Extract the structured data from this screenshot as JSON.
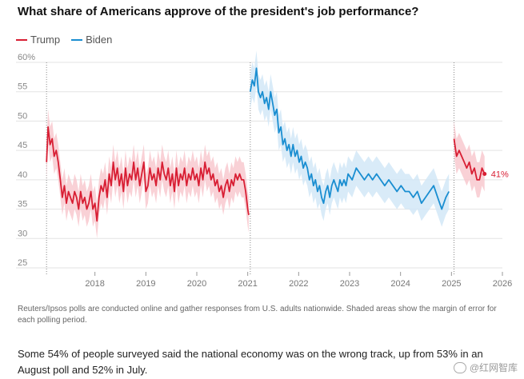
{
  "title": "What share of Americans approve of the president's job performance?",
  "legend": [
    {
      "label": "Trump",
      "color": "#d81e33"
    },
    {
      "label": "Biden",
      "color": "#1a8ed1"
    }
  ],
  "chart_data": {
    "type": "line",
    "title": "What share of Americans approve of the president's job performance?",
    "ylabel": "",
    "xlabel": "",
    "ylim": [
      25,
      60
    ],
    "xlim": [
      2017.0,
      2026.0
    ],
    "y_ticks": [
      "60%",
      "55",
      "50",
      "45",
      "40",
      "35",
      "30",
      "25"
    ],
    "y_tick_values": [
      60,
      55,
      50,
      45,
      40,
      35,
      30,
      25
    ],
    "x_ticks": [
      "2018",
      "2019",
      "2020",
      "2021",
      "2022",
      "2023",
      "2024",
      "2025",
      "2026"
    ],
    "x_tick_values": [
      2018,
      2019,
      2020,
      2021,
      2022,
      2023,
      2024,
      2025,
      2026
    ],
    "grid": true,
    "term_markers": [
      2017.05,
      2021.05,
      2025.05
    ],
    "end_label": "41%",
    "series": [
      {
        "name": "Trump",
        "color": "#d81e33",
        "band_color": "#f7c6cc",
        "margin": 3,
        "points": [
          [
            2017.05,
            43
          ],
          [
            2017.08,
            49
          ],
          [
            2017.12,
            46
          ],
          [
            2017.16,
            47
          ],
          [
            2017.2,
            44
          ],
          [
            2017.24,
            45
          ],
          [
            2017.28,
            43
          ],
          [
            2017.32,
            40
          ],
          [
            2017.36,
            37
          ],
          [
            2017.4,
            39
          ],
          [
            2017.44,
            36
          ],
          [
            2017.48,
            38
          ],
          [
            2017.52,
            37
          ],
          [
            2017.56,
            36
          ],
          [
            2017.6,
            38
          ],
          [
            2017.64,
            37
          ],
          [
            2017.68,
            35
          ],
          [
            2017.72,
            38
          ],
          [
            2017.76,
            36
          ],
          [
            2017.8,
            37
          ],
          [
            2017.84,
            35
          ],
          [
            2017.88,
            36
          ],
          [
            2017.92,
            38
          ],
          [
            2017.96,
            35
          ],
          [
            2018.0,
            36
          ],
          [
            2018.04,
            33
          ],
          [
            2018.08,
            37
          ],
          [
            2018.12,
            39
          ],
          [
            2018.16,
            38
          ],
          [
            2018.2,
            40
          ],
          [
            2018.24,
            37
          ],
          [
            2018.28,
            41
          ],
          [
            2018.32,
            39
          ],
          [
            2018.36,
            43
          ],
          [
            2018.4,
            40
          ],
          [
            2018.44,
            42
          ],
          [
            2018.48,
            39
          ],
          [
            2018.52,
            41
          ],
          [
            2018.56,
            38
          ],
          [
            2018.6,
            42
          ],
          [
            2018.64,
            39
          ],
          [
            2018.68,
            41
          ],
          [
            2018.72,
            40
          ],
          [
            2018.76,
            43
          ],
          [
            2018.8,
            40
          ],
          [
            2018.84,
            42
          ],
          [
            2018.88,
            39
          ],
          [
            2018.92,
            41
          ],
          [
            2018.96,
            43
          ],
          [
            2019.0,
            38
          ],
          [
            2019.04,
            39
          ],
          [
            2019.08,
            42
          ],
          [
            2019.12,
            40
          ],
          [
            2019.16,
            41
          ],
          [
            2019.2,
            39
          ],
          [
            2019.24,
            42
          ],
          [
            2019.28,
            40
          ],
          [
            2019.32,
            43
          ],
          [
            2019.36,
            41
          ],
          [
            2019.4,
            40
          ],
          [
            2019.44,
            42
          ],
          [
            2019.48,
            39
          ],
          [
            2019.52,
            41
          ],
          [
            2019.56,
            38
          ],
          [
            2019.6,
            42
          ],
          [
            2019.64,
            39
          ],
          [
            2019.68,
            41
          ],
          [
            2019.72,
            40
          ],
          [
            2019.76,
            42
          ],
          [
            2019.8,
            39
          ],
          [
            2019.84,
            41
          ],
          [
            2019.88,
            40
          ],
          [
            2019.92,
            42
          ],
          [
            2019.96,
            40
          ],
          [
            2020.0,
            41
          ],
          [
            2020.04,
            39
          ],
          [
            2020.08,
            42
          ],
          [
            2020.12,
            40
          ],
          [
            2020.16,
            43
          ],
          [
            2020.2,
            41
          ],
          [
            2020.24,
            42
          ],
          [
            2020.28,
            40
          ],
          [
            2020.32,
            41
          ],
          [
            2020.36,
            39
          ],
          [
            2020.4,
            40
          ],
          [
            2020.44,
            38
          ],
          [
            2020.48,
            39
          ],
          [
            2020.52,
            37
          ],
          [
            2020.56,
            39
          ],
          [
            2020.6,
            40
          ],
          [
            2020.64,
            38
          ],
          [
            2020.68,
            40
          ],
          [
            2020.72,
            39
          ],
          [
            2020.76,
            41
          ],
          [
            2020.8,
            40
          ],
          [
            2020.84,
            41
          ],
          [
            2020.88,
            40
          ],
          [
            2020.92,
            40
          ],
          [
            2020.96,
            38
          ],
          [
            2021.0,
            35
          ],
          [
            2021.02,
            34
          ]
        ]
      },
      {
        "name": "Biden",
        "color": "#1a8ed1",
        "band_color": "#cfe6f6",
        "margin": 3,
        "points": [
          [
            2021.05,
            55
          ],
          [
            2021.09,
            57
          ],
          [
            2021.13,
            56
          ],
          [
            2021.17,
            59
          ],
          [
            2021.21,
            55
          ],
          [
            2021.25,
            54
          ],
          [
            2021.29,
            55
          ],
          [
            2021.33,
            53
          ],
          [
            2021.37,
            54
          ],
          [
            2021.41,
            52
          ],
          [
            2021.45,
            55
          ],
          [
            2021.49,
            53
          ],
          [
            2021.53,
            51
          ],
          [
            2021.57,
            52
          ],
          [
            2021.61,
            48
          ],
          [
            2021.65,
            49
          ],
          [
            2021.69,
            46
          ],
          [
            2021.73,
            47
          ],
          [
            2021.77,
            45
          ],
          [
            2021.81,
            46
          ],
          [
            2021.85,
            44
          ],
          [
            2021.89,
            46
          ],
          [
            2021.93,
            44
          ],
          [
            2021.97,
            45
          ],
          [
            2022.01,
            43
          ],
          [
            2022.05,
            44
          ],
          [
            2022.09,
            42
          ],
          [
            2022.13,
            43
          ],
          [
            2022.17,
            42
          ],
          [
            2022.21,
            40
          ],
          [
            2022.25,
            41
          ],
          [
            2022.29,
            39
          ],
          [
            2022.33,
            40
          ],
          [
            2022.37,
            38
          ],
          [
            2022.41,
            39
          ],
          [
            2022.45,
            37
          ],
          [
            2022.49,
            36
          ],
          [
            2022.53,
            38
          ],
          [
            2022.57,
            39
          ],
          [
            2022.61,
            37
          ],
          [
            2022.65,
            39
          ],
          [
            2022.69,
            40
          ],
          [
            2022.73,
            39
          ],
          [
            2022.77,
            38
          ],
          [
            2022.81,
            40
          ],
          [
            2022.85,
            39
          ],
          [
            2022.89,
            40
          ],
          [
            2022.93,
            39
          ],
          [
            2022.97,
            41
          ],
          [
            2023.05,
            40
          ],
          [
            2023.13,
            42
          ],
          [
            2023.21,
            41
          ],
          [
            2023.29,
            40
          ],
          [
            2023.37,
            41
          ],
          [
            2023.45,
            40
          ],
          [
            2023.53,
            41
          ],
          [
            2023.61,
            40
          ],
          [
            2023.69,
            39
          ],
          [
            2023.77,
            40
          ],
          [
            2023.85,
            39
          ],
          [
            2023.93,
            38
          ],
          [
            2024.01,
            39
          ],
          [
            2024.09,
            38
          ],
          [
            2024.17,
            38
          ],
          [
            2024.25,
            37
          ],
          [
            2024.33,
            38
          ],
          [
            2024.41,
            36
          ],
          [
            2024.49,
            37
          ],
          [
            2024.57,
            38
          ],
          [
            2024.65,
            39
          ],
          [
            2024.73,
            37
          ],
          [
            2024.81,
            35
          ],
          [
            2024.89,
            37
          ],
          [
            2024.95,
            38
          ]
        ]
      },
      {
        "name": "Trump",
        "color": "#d81e33",
        "band_color": "#f7c6cc",
        "margin": 3,
        "points": [
          [
            2025.05,
            47
          ],
          [
            2025.1,
            44
          ],
          [
            2025.15,
            45
          ],
          [
            2025.2,
            44
          ],
          [
            2025.25,
            43
          ],
          [
            2025.3,
            42
          ],
          [
            2025.35,
            43
          ],
          [
            2025.4,
            41
          ],
          [
            2025.45,
            42
          ],
          [
            2025.5,
            40
          ],
          [
            2025.55,
            40
          ],
          [
            2025.6,
            42
          ],
          [
            2025.65,
            41
          ]
        ]
      }
    ]
  },
  "footnote": "Reuters/Ipsos polls are conducted online and gather responses from U.S. adults nationwide. Shaded areas show the margin of error for each polling period.",
  "body_text": "Some 54% of people surveyed said the national economy was on the wrong track, up from 53% in an August poll and 52% in July.",
  "watermark": "@红网智库"
}
